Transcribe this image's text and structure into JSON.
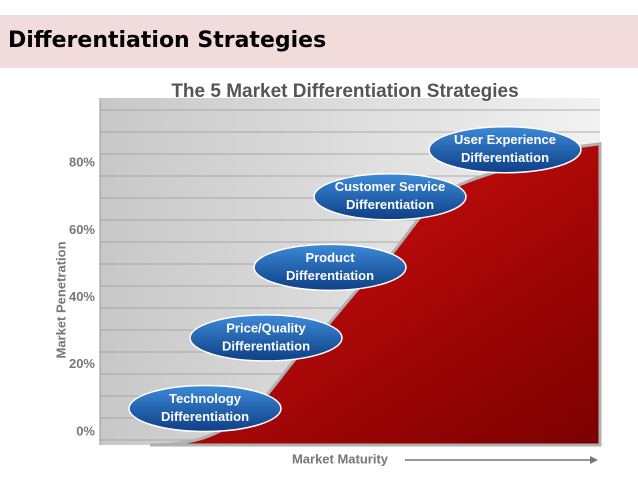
{
  "header": {
    "title": "Differentiation Strategies"
  },
  "chart_data": {
    "type": "area",
    "title": "The 5 Market Differentiation Strategies",
    "y_label": "Market Penetration",
    "x_label": "Market Maturity",
    "categories": [
      [
        "Technology",
        "Differentiation"
      ],
      [
        "Price/Quality",
        "Differentiation"
      ],
      [
        "Product",
        "Differentiation"
      ],
      [
        "Customer Service",
        "Differentiation"
      ],
      [
        "User Experience",
        "Differentiation"
      ]
    ],
    "values": [
      7,
      28,
      49,
      70,
      84
    ],
    "color": "#c00000",
    "ylim": [
      0,
      100
    ],
    "yticks": [
      {
        "value": 0,
        "label": "0%"
      },
      {
        "value": 20,
        "label": "20%"
      },
      {
        "value": 40,
        "label": "40%"
      },
      {
        "value": 60,
        "label": "60%"
      },
      {
        "value": 80,
        "label": "80%"
      }
    ],
    "grid": true
  }
}
